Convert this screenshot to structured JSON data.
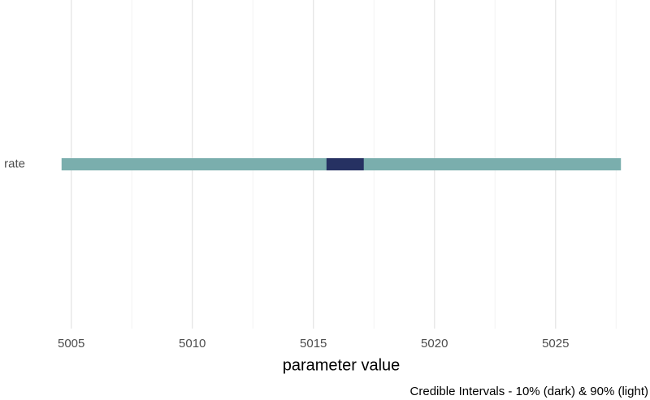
{
  "chart_data": {
    "type": "interval",
    "xlabel": "parameter value",
    "caption": "Credible Intervals - 10% (dark) & 90% (light)",
    "categories": [
      "rate"
    ],
    "series": [
      {
        "color": "#7aaead",
        "low": [
          5004.6
        ],
        "high": [
          5027.7
        ]
      },
      {
        "color": "#263162",
        "low": [
          5015.54
        ],
        "high": [
          5017.08
        ]
      }
    ],
    "xlim": [
      5003.4,
      5028.9
    ],
    "xticks": [
      5005,
      5010,
      5015,
      5020,
      5025
    ],
    "xminor": [
      5007.5,
      5012.5,
      5017.5,
      5022.5,
      5027.5
    ],
    "grid": true
  }
}
